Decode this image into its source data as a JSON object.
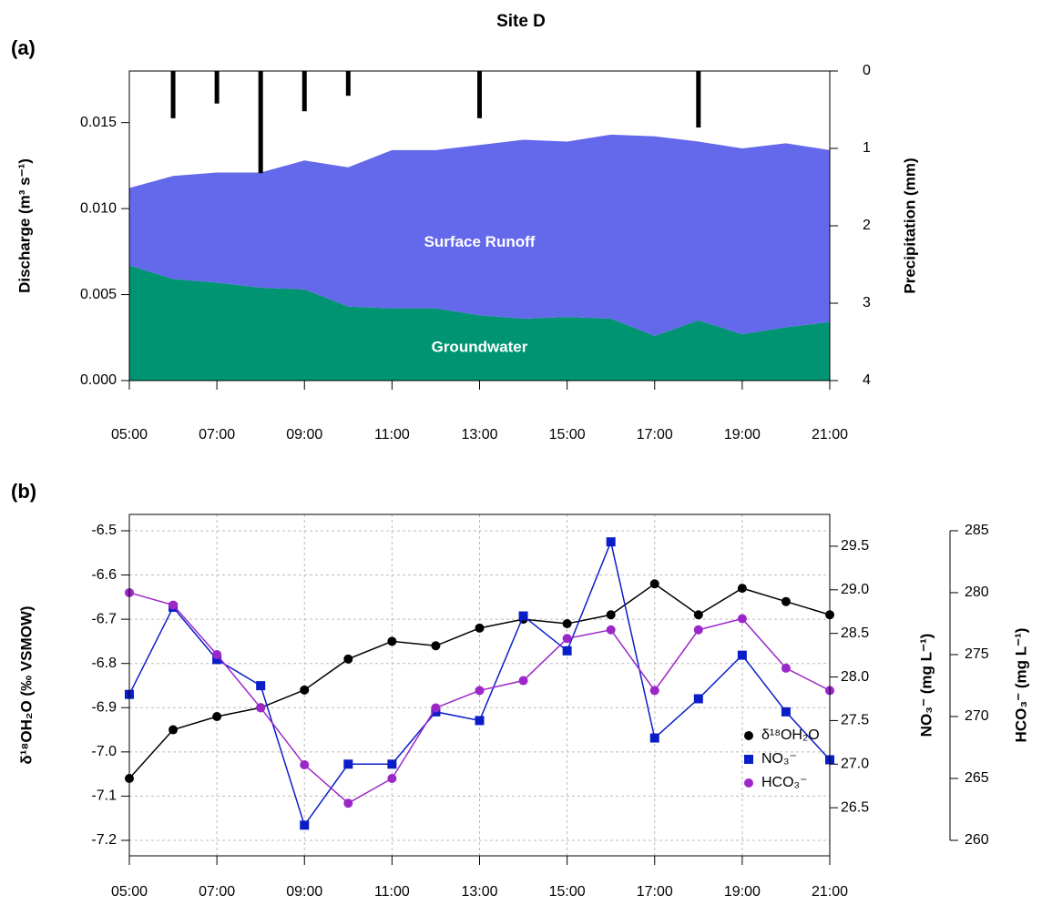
{
  "title": "Site D",
  "chart_data": [
    {
      "type": "area",
      "title": "(a)",
      "x": [
        5,
        6,
        7,
        8,
        9,
        10,
        11,
        12,
        13,
        14,
        15,
        16,
        17,
        18,
        19,
        20,
        21
      ],
      "xlim": [
        5,
        21
      ],
      "xticks": [
        {
          "value": 5,
          "label": "05:00"
        },
        {
          "value": 7,
          "label": "07:00"
        },
        {
          "value": 9,
          "label": "09:00"
        },
        {
          "value": 11,
          "label": "11:00"
        },
        {
          "value": 13,
          "label": "13:00"
        },
        {
          "value": 15,
          "label": "15:00"
        },
        {
          "value": 17,
          "label": "17:00"
        },
        {
          "value": 19,
          "label": "19:00"
        },
        {
          "value": 21,
          "label": "21:00"
        }
      ],
      "ylim": [
        0,
        0.018
      ],
      "yticks": [
        {
          "value": 0,
          "label": "0.000"
        },
        0.005,
        {
          "value": 0.01,
          "label": "0.010"
        },
        0.015
      ],
      "ylabel": "Discharge (m³ s⁻¹)",
      "y2lim": [
        4,
        0
      ],
      "y2ticks": [
        0,
        1,
        2,
        3,
        4
      ],
      "y2label": "Precipitation (mm)",
      "grid": false,
      "series": [
        {
          "name": "Groundwater",
          "color": "#009473",
          "values": [
            0.0067,
            0.0059,
            0.0057,
            0.0054,
            0.0053,
            0.0043,
            0.0042,
            0.0042,
            0.0038,
            0.0036,
            0.0037,
            0.0036,
            0.0026,
            0.0035,
            0.0027,
            0.0031,
            0.0034
          ]
        },
        {
          "name": "Surface Runoff",
          "color": "#6468ea",
          "values": [
            0.0045,
            0.006,
            0.0064,
            0.0067,
            0.0075,
            0.0081,
            0.0092,
            0.0092,
            0.0099,
            0.0104,
            0.0102,
            0.0107,
            0.0116,
            0.0104,
            0.0108,
            0.0107,
            0.01
          ]
        },
        {
          "type": "bar",
          "axis": "y2",
          "color": "#000000",
          "x": [
            6,
            7,
            8,
            9,
            10,
            13,
            18
          ],
          "values": [
            0.61,
            0.42,
            1.32,
            0.52,
            0.32,
            0.61,
            0.73
          ]
        }
      ]
    },
    {
      "type": "line",
      "title": "(b)",
      "x": [
        5,
        6,
        7,
        8,
        9,
        10,
        11,
        12,
        13,
        14,
        15,
        16,
        17,
        18,
        19,
        20,
        21
      ],
      "xlim": [
        5,
        21
      ],
      "xticks": [
        {
          "value": 5,
          "label": "05:00"
        },
        {
          "value": 7,
          "label": "07:00"
        },
        {
          "value": 9,
          "label": "09:00"
        },
        {
          "value": 11,
          "label": "11:00"
        },
        {
          "value": 13,
          "label": "13:00"
        },
        {
          "value": 15,
          "label": "15:00"
        },
        {
          "value": 17,
          "label": "17:00"
        },
        {
          "value": 19,
          "label": "19:00"
        },
        {
          "value": 21,
          "label": "21:00"
        }
      ],
      "ylim": [
        -7.235,
        -6.463
      ],
      "yticks": [
        -6.5,
        -6.6,
        -6.7,
        -6.8,
        -6.9,
        {
          "value": -7,
          "label": "-7.0"
        },
        -7.1,
        -7.2
      ],
      "ylabel": "δ¹⁸OH₂O (‰ VSMOW)",
      "y2lim": [
        25.948,
        29.865
      ],
      "y2ticks": [
        26.5,
        {
          "value": 27,
          "label": "27.0"
        },
        27.5,
        {
          "value": 28,
          "label": "28.0"
        },
        28.5,
        {
          "value": 29,
          "label": "29.0"
        },
        29.5
      ],
      "y2label": "NO₃⁻ (mg L⁻¹)",
      "y3lim": [
        258.75,
        286.32
      ],
      "y3ticks": [
        260,
        265,
        270,
        275,
        280,
        285
      ],
      "y3label": "HCO₃⁻ (mg L⁻¹)",
      "grid": true,
      "legend": "bottom right",
      "series": [
        {
          "name": "δ¹⁸OH₂O",
          "color": "#000000",
          "marker": "circle",
          "axis": "y",
          "values": [
            -7.06,
            -6.95,
            -6.92,
            -6.9,
            -6.86,
            -6.79,
            -6.75,
            -6.76,
            -6.72,
            -6.7,
            -6.71,
            -6.69,
            -6.62,
            -6.69,
            -6.63,
            -6.66,
            -6.69
          ]
        },
        {
          "name": "NO₃⁻",
          "color": "#0a1ec8",
          "marker": "square",
          "axis": "y2",
          "values": [
            27.8,
            28.8,
            28.2,
            27.9,
            26.3,
            27.0,
            27.0,
            27.6,
            27.5,
            28.7,
            28.3,
            29.55,
            27.3,
            27.75,
            28.25,
            27.6,
            27.05
          ]
        },
        {
          "name": "HCO₃⁻",
          "color": "#9b27c8",
          "marker": "circle",
          "axis": "y3",
          "values": [
            280,
            279,
            275,
            270.7,
            266.1,
            263,
            265,
            270.7,
            272.1,
            272.9,
            276.3,
            277,
            272.1,
            277,
            277.9,
            273.9,
            272.1
          ]
        }
      ]
    }
  ]
}
